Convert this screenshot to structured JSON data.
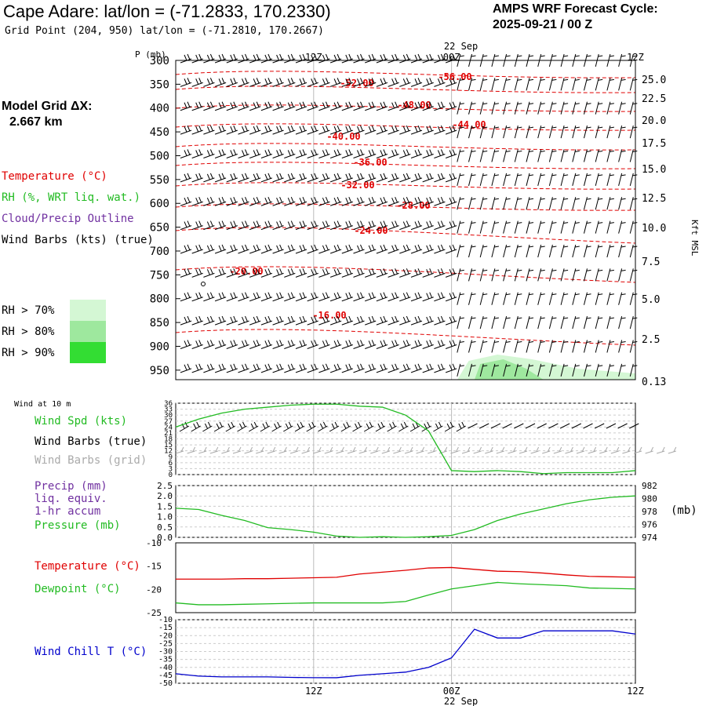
{
  "header": {
    "title": "Cape Adare:  lat/lon = (-71.2833, 170.2330)",
    "grid_point": "Grid Point (204, 950) lat/lon = (-71.2810, 170.2667)",
    "cycle_line1": "AMPS WRF Forecast Cycle:",
    "cycle_line2": "2025-09-21 / 00  Z",
    "model_grid_line1": "Model Grid ΔX:",
    "model_grid_line2": "2.667 km"
  },
  "legend": {
    "temperature": "Temperature (°C)",
    "rh": "RH (%, WRT liq. wat.)",
    "cloud": "Cloud/Precip Outline",
    "wind_barbs": "Wind Barbs (kts) (true)",
    "rh70": "RH > 70%",
    "rh80": "RH > 80%",
    "rh90": "RH > 90%",
    "wind10m": "Wind at 10 m",
    "wind_spd": "Wind Spd (kts)",
    "wind_true": "Wind Barbs (true)",
    "wind_grid": "Wind Barbs (grid)",
    "precip1": "Precip (mm)",
    "precip2": "liq. equiv.",
    "precip3": "1-hr accum",
    "pressure": "Pressure (mb)",
    "pressure_unit": "(mb)",
    "temp2": "Temperature (°C)",
    "dewpoint": "Dewpoint (°C)",
    "windchill": "Wind Chill T (°C)"
  },
  "colors": {
    "temp": "#e00000",
    "rh_green": "#22bb22",
    "cloud": "#7030a0",
    "grid_barb": "#aaaaaa",
    "windchill": "#0000cc",
    "rh70_fill": "#d4f7d4",
    "rh80_fill": "#9ee89e",
    "rh90_fill": "#33dd33"
  },
  "time_axis": {
    "top_date": "22 Sep",
    "bottom_date": "22 Sep",
    "labels": [
      "12Z",
      "00Z",
      "12Z"
    ]
  },
  "chart_data": [
    {
      "type": "line",
      "name": "cross-section",
      "ylabel": "P (mb)",
      "ylabel_right": "Kft MSL",
      "pressure_levels": [
        300,
        350,
        400,
        450,
        500,
        550,
        600,
        650,
        700,
        750,
        800,
        850,
        900,
        950
      ],
      "height_ticks": [
        "25.0",
        "22.5",
        "20.0",
        "17.5",
        "15.0",
        "12.5",
        "10.0",
        "7.5",
        "5.0",
        "2.5",
        "0.13"
      ],
      "isotherm_labels": [
        "-56.00",
        "-52.00",
        "-48.00",
        "-44.00",
        "-40.00",
        "-36.00",
        "-32.00",
        "-28.00",
        "-24.00",
        "-20.00",
        "-16.00"
      ]
    },
    {
      "type": "line",
      "name": "wind-speed",
      "y_ticks": [
        "36",
        "33",
        "30",
        "27",
        "24",
        "21",
        "18",
        "15",
        "12",
        "9",
        "6",
        "3",
        "0"
      ],
      "ylim": [
        0,
        36
      ],
      "x_hours": [
        0,
        2,
        4,
        6,
        8,
        10,
        12,
        14,
        16,
        18,
        20,
        22,
        24,
        26,
        28,
        30,
        32,
        34,
        36,
        38,
        40
      ],
      "values": [
        24,
        28,
        31,
        33,
        34,
        35,
        35.5,
        35.5,
        34.5,
        34,
        30,
        22,
        2,
        1.5,
        2,
        1.5,
        0.5,
        1,
        1,
        1,
        2
      ]
    },
    {
      "type": "line",
      "name": "precip-pressure",
      "y_ticks": [
        "2.5",
        "2.0",
        "1.5",
        "1.0",
        "0.5",
        "0.0"
      ],
      "y2_ticks": [
        "982",
        "980",
        "978",
        "976",
        "974"
      ],
      "ylim": [
        0,
        2.5
      ],
      "y2lim": [
        974,
        982
      ],
      "x_hours": [
        0,
        2,
        4,
        6,
        8,
        10,
        12,
        14,
        16,
        18,
        20,
        22,
        24,
        26,
        28,
        30,
        32,
        34,
        36,
        38,
        40
      ],
      "pressure": [
        978.5,
        978.3,
        977.4,
        976.6,
        975.5,
        975.2,
        974.8,
        974.2,
        974.0,
        974.1,
        974.0,
        974.1,
        974.3,
        975.2,
        976.6,
        977.6,
        978.4,
        979.2,
        979.8,
        980.2,
        980.4
      ]
    },
    {
      "type": "line",
      "name": "temp-dewpoint",
      "y_ticks": [
        "-10",
        "-15",
        "-20",
        "-25"
      ],
      "ylim": [
        -25,
        -10
      ],
      "x_hours": [
        0,
        2,
        4,
        6,
        8,
        10,
        12,
        14,
        16,
        18,
        20,
        22,
        24,
        26,
        28,
        30,
        32,
        34,
        36,
        38,
        40
      ],
      "series": [
        {
          "name": "Temperature",
          "values": [
            -17.8,
            -17.8,
            -17.8,
            -17.7,
            -17.7,
            -17.6,
            -17.5,
            -17.4,
            -16.7,
            -16.3,
            -15.9,
            -15.4,
            -15.3,
            -15.7,
            -16.1,
            -16.2,
            -16.5,
            -16.9,
            -17.2,
            -17.3,
            -17.4
          ]
        },
        {
          "name": "Dewpoint",
          "values": [
            -22.9,
            -23.3,
            -23.3,
            -23.2,
            -23.1,
            -23.0,
            -22.9,
            -22.9,
            -22.9,
            -22.9,
            -22.6,
            -21.2,
            -19.9,
            -19.2,
            -18.5,
            -18.8,
            -19.0,
            -19.2,
            -19.7,
            -19.8,
            -19.9
          ]
        }
      ]
    },
    {
      "type": "line",
      "name": "wind-chill",
      "y_ticks": [
        "-10",
        "-15",
        "-20",
        "-25",
        "-30",
        "-35",
        "-40",
        "-45",
        "-50"
      ],
      "ylim": [
        -50,
        -10
      ],
      "x_hours": [
        0,
        2,
        4,
        6,
        8,
        10,
        12,
        14,
        16,
        18,
        20,
        22,
        24,
        25,
        26,
        28,
        30,
        32,
        34,
        36,
        38,
        40
      ],
      "values": [
        -44,
        -45.5,
        -46,
        -46,
        -46,
        -46.3,
        -46.5,
        -46.5,
        -45,
        -44,
        -43,
        -40,
        -34,
        -25,
        -16,
        -21.5,
        -21.5,
        -17,
        -17,
        -17,
        -17,
        -19
      ]
    }
  ]
}
